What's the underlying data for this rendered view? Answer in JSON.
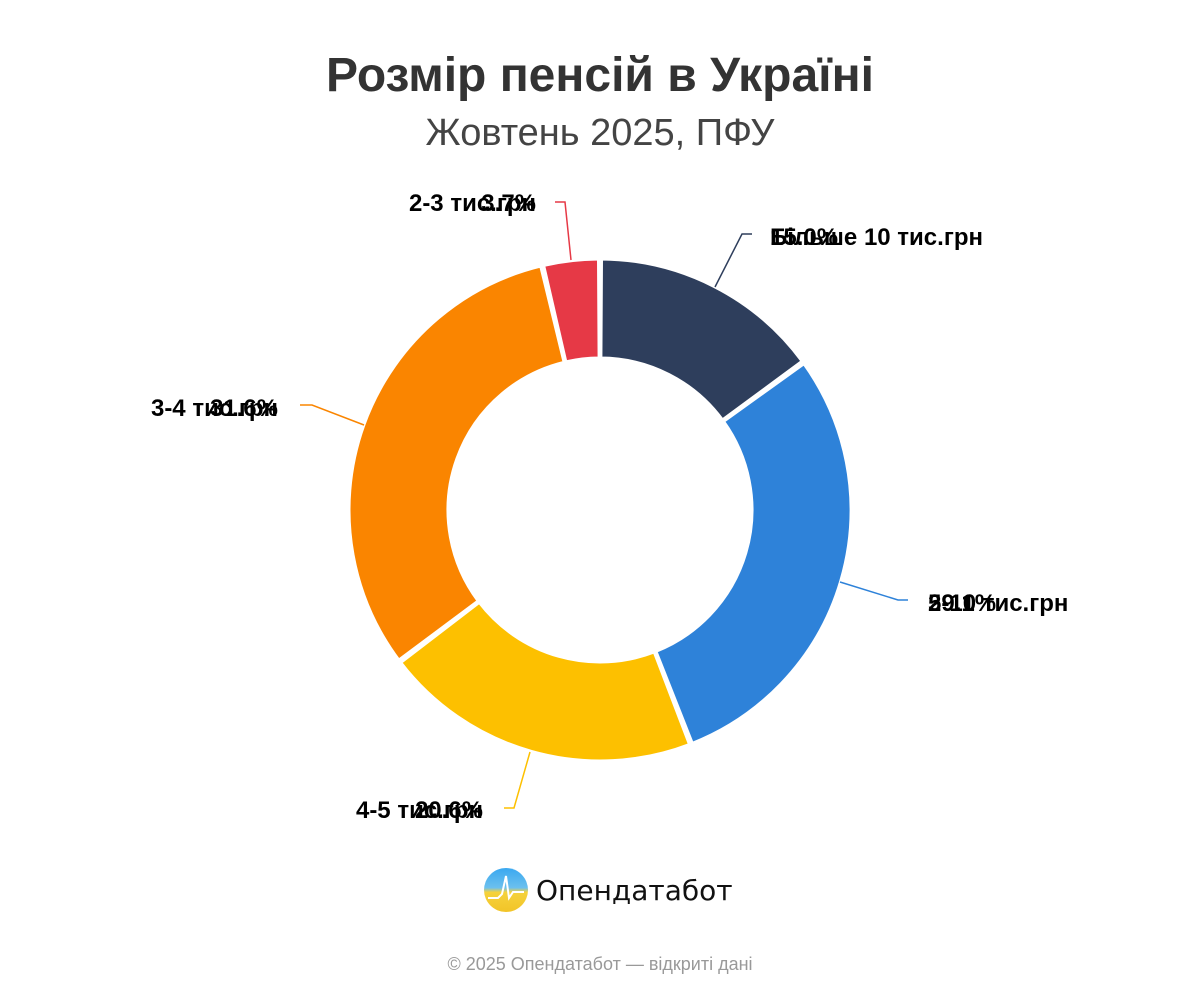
{
  "header": {
    "title": "Розмір пенсій в Україні",
    "subtitle": "Жовтень 2025, ПФУ"
  },
  "chart_data": {
    "type": "pie",
    "donut": true,
    "title": "Розмір пенсій в Україні",
    "subtitle": "Жовтень 2025, ПФУ",
    "categories": [
      "Більше 10 тис.грн",
      "5-10 тис.грн",
      "4-5 тис.грн",
      "3-4 тис.грн",
      "2-3 тис.грн"
    ],
    "values": [
      15.0,
      29.1,
      20.6,
      31.6,
      3.7
    ],
    "unit": "%",
    "colors": [
      "#2e3e5c",
      "#2e82d9",
      "#fdc000",
      "#fa8500",
      "#e63946"
    ],
    "labels": [
      {
        "category": "Більше 10 тис.грн",
        "percent": "15.0%"
      },
      {
        "category": "5-10 тис.грн",
        "percent": "29.1%"
      },
      {
        "category": "4-5 тис.грн",
        "percent": "20.6%"
      },
      {
        "category": "3-4 тис.грн",
        "percent": "31.6%"
      },
      {
        "category": "2-3 тис.грн",
        "percent": "3.7%"
      }
    ],
    "legend": "none"
  },
  "branding": {
    "name": "Опендатабот",
    "logo_icon": "opendatabot-logo-icon"
  },
  "footer": {
    "text": "© 2025 Опендатабот — відкриті дані"
  }
}
